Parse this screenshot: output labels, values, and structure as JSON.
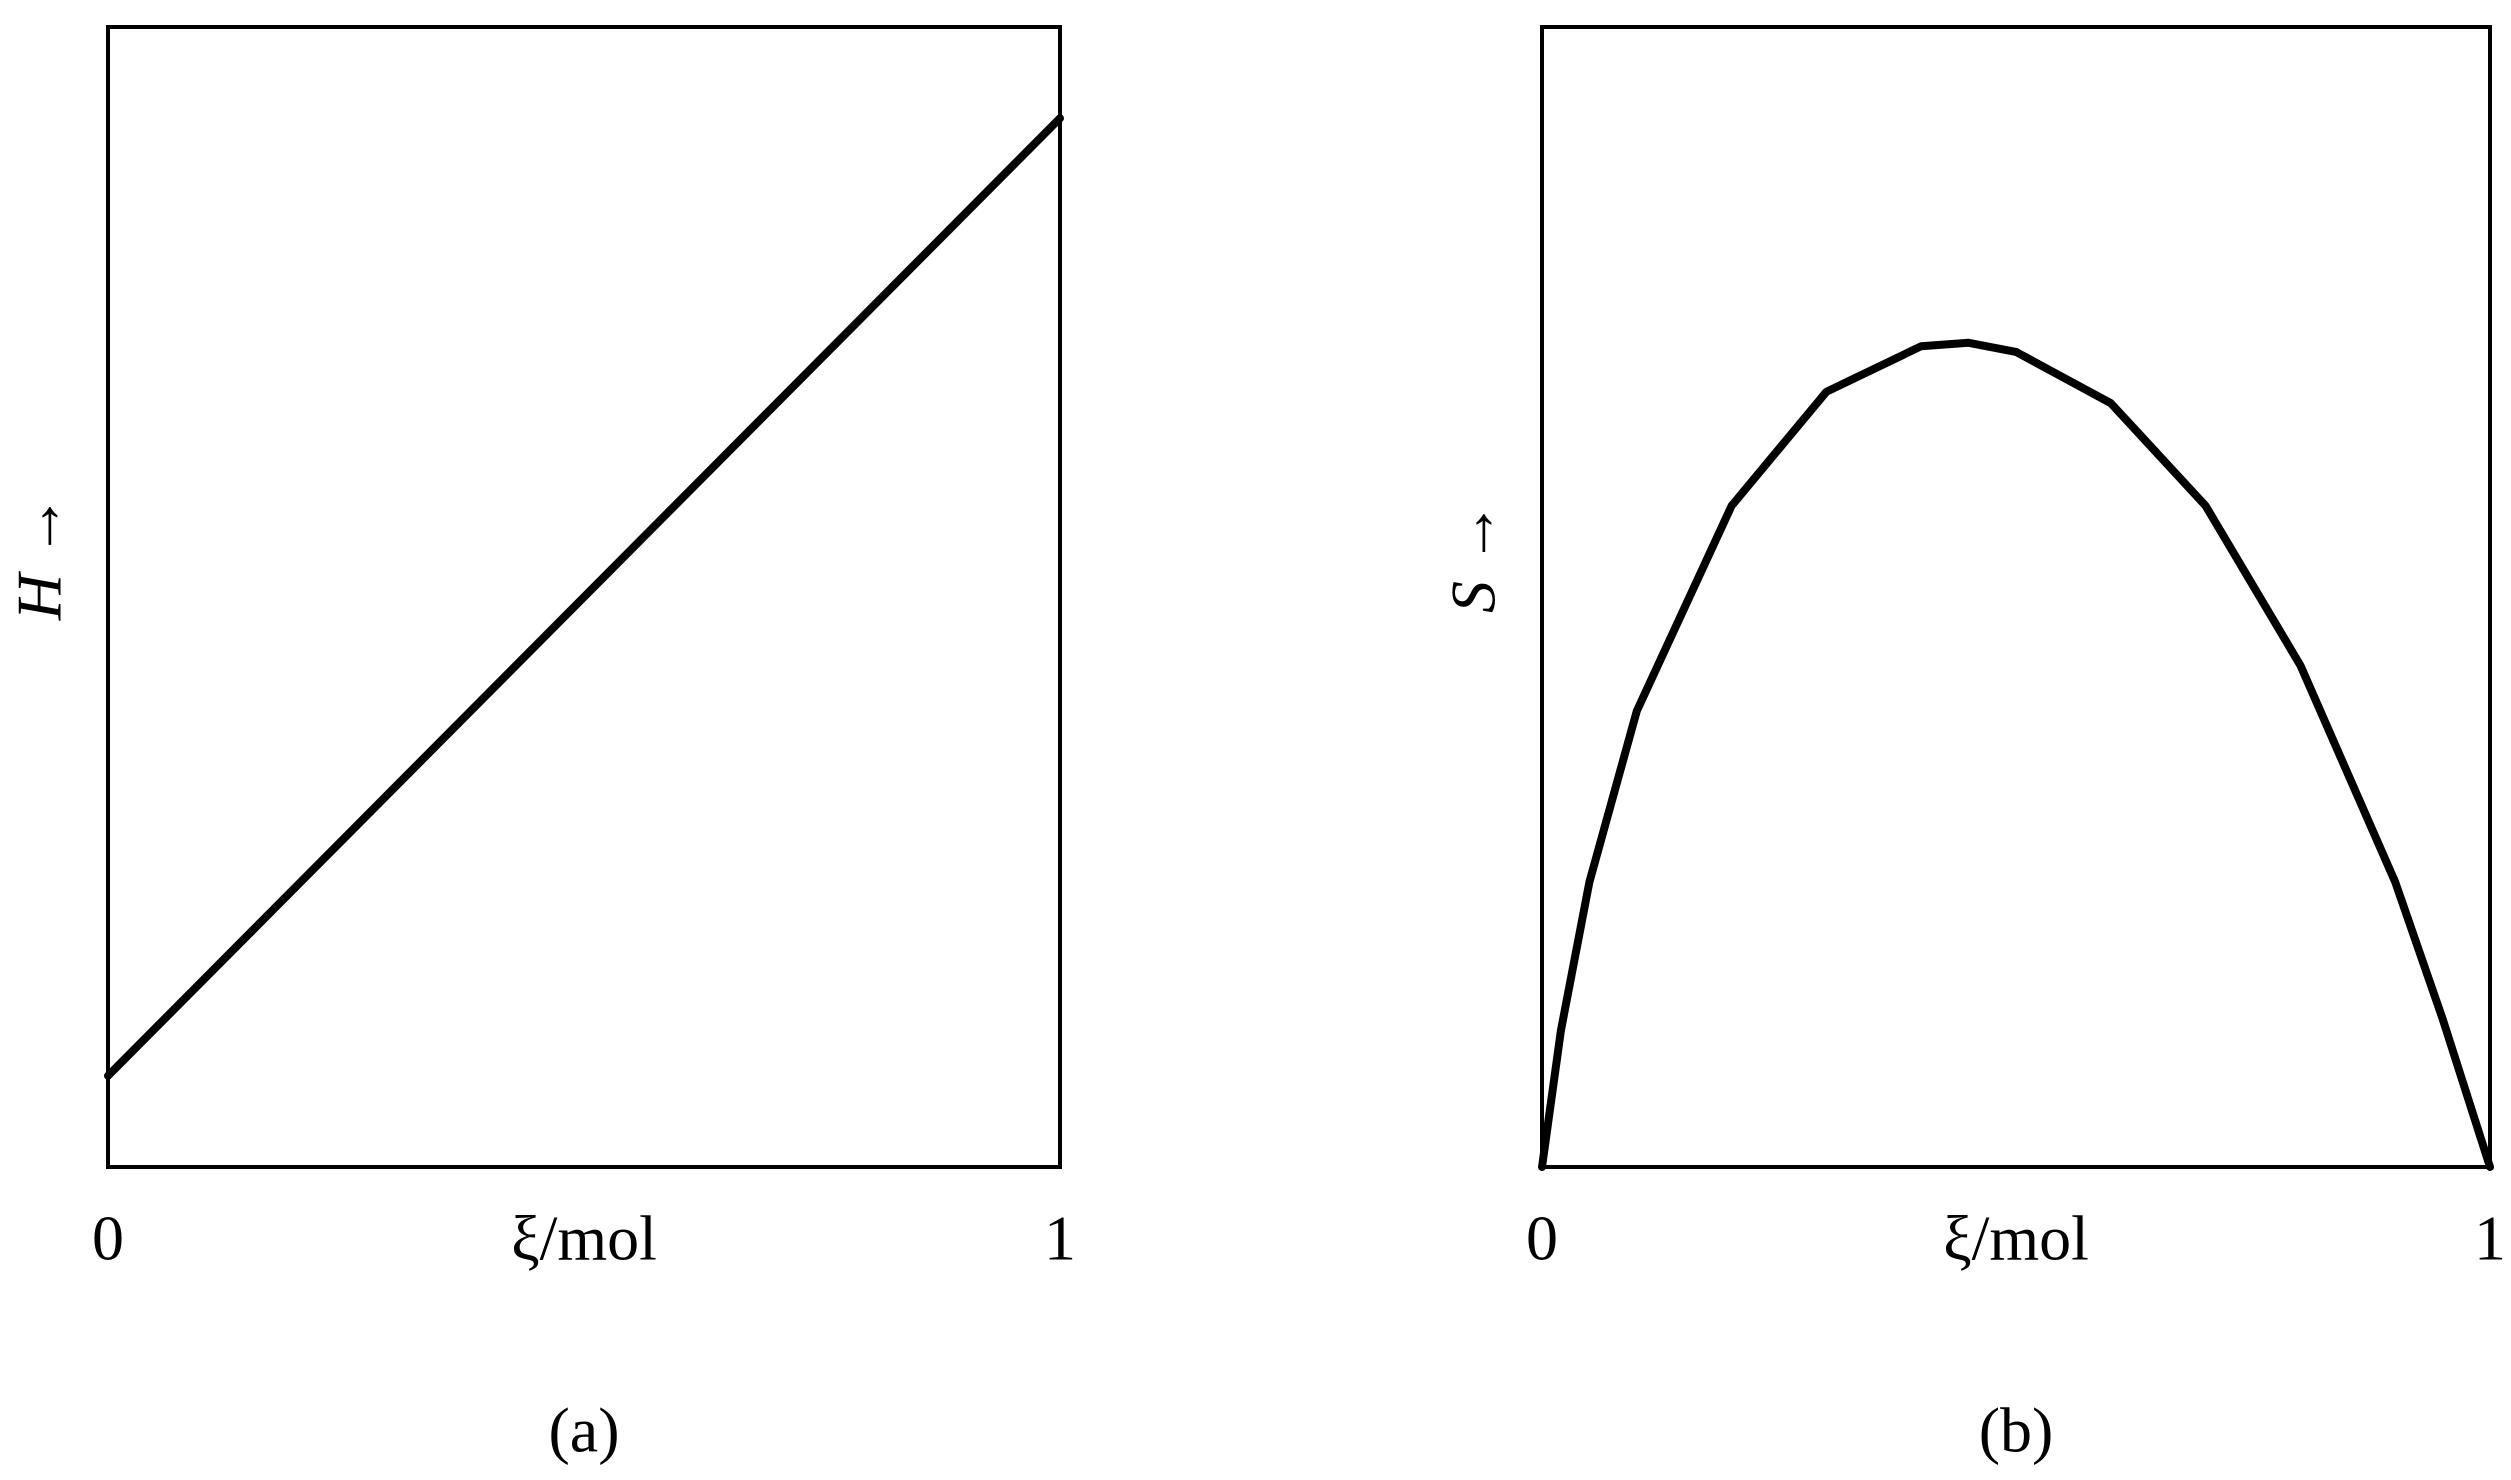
{
  "chart_data": [
    {
      "type": "line",
      "caption": "(a)",
      "ylabel": "H →",
      "xlabel": "ξ/mol",
      "x": [
        0,
        1
      ],
      "values": [
        0.08,
        0.92
      ],
      "color": "#000000",
      "xlim": [
        0,
        1
      ],
      "xticks": [
        0,
        1
      ],
      "ylim": [
        0,
        1
      ]
    },
    {
      "type": "line",
      "caption": "(b)",
      "ylabel": "S →",
      "xlabel": "ξ/mol",
      "x": [
        0,
        0.02,
        0.05,
        0.1,
        0.2,
        0.3,
        0.4,
        0.45,
        0.5,
        0.6,
        0.7,
        0.8,
        0.9,
        0.95,
        1
      ],
      "values": [
        0,
        0.12,
        0.25,
        0.4,
        0.58,
        0.68,
        0.72,
        0.723,
        0.715,
        0.67,
        0.58,
        0.44,
        0.25,
        0.13,
        0
      ],
      "color": "#000000",
      "xlim": [
        0,
        1
      ],
      "xticks": [
        0,
        1
      ],
      "ylim": [
        0,
        1
      ]
    }
  ]
}
